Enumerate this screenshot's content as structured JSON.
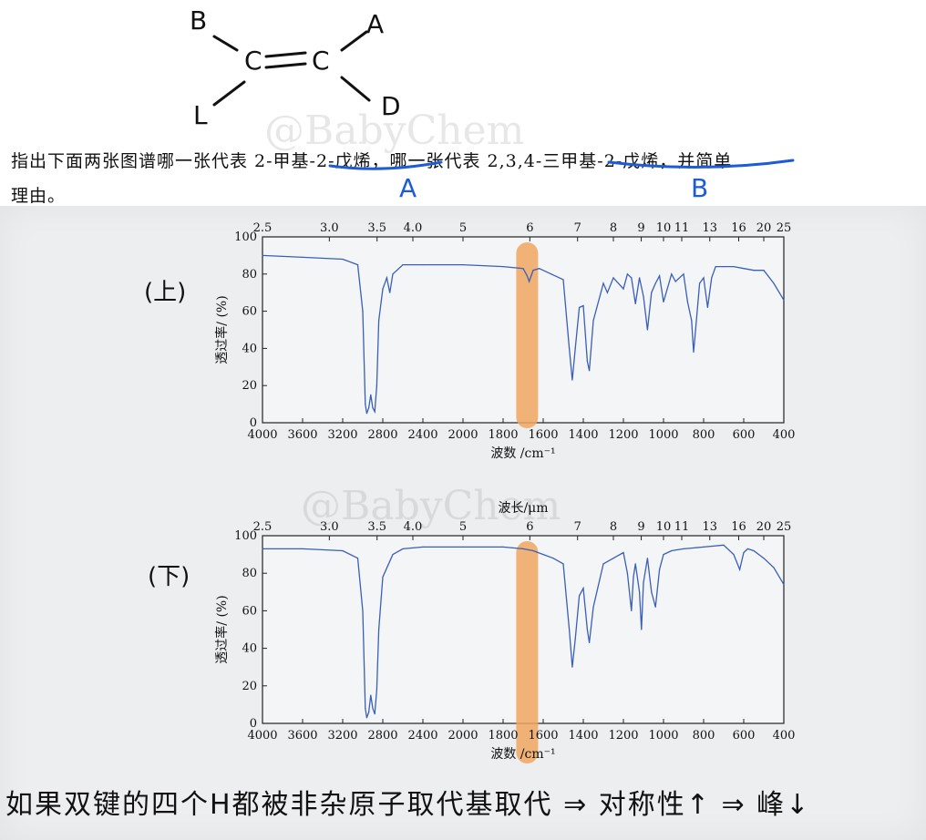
{
  "structure": {
    "atoms": {
      "top_left": "B",
      "top_right": "A",
      "bottom_left": "L",
      "bottom_right": "D",
      "c1": "C",
      "c2": "C"
    }
  },
  "question": {
    "prefix": "指出下面两张图谱哪一张代表 ",
    "compound_a": "2-甲基-2-戊烯",
    "middle": "，哪一张代表 ",
    "compound_b": "2,3,4-三甲基-2-戊烯",
    "suffix": "，并简单",
    "line2": "理由。"
  },
  "annotations": {
    "label_a": "A",
    "label_b": "B",
    "top_chart_label": "(上)",
    "bottom_chart_label": "(下)"
  },
  "watermark": "@BabyChem",
  "note": "如果双键的四个H都被非杂原子取代基取代 ⇒ 对称性↑ ⇒ 峰↓",
  "highlight_color": "#f0a660",
  "line_color": "#3a5fb8",
  "chart_data": [
    {
      "type": "line",
      "name": "top",
      "xlabel": "波数 /cm⁻¹",
      "ylabel": "透过率/ (%)",
      "top_axis_label": "",
      "xlim": [
        4000,
        400
      ],
      "ylim": [
        0,
        100
      ],
      "x_ticks": [
        "4000",
        "3600",
        "3200",
        "2800",
        "2400",
        "2000",
        "1800",
        "1600",
        "1400",
        "1200",
        "1000",
        "800",
        "600",
        "400"
      ],
      "y_ticks": [
        "0",
        "20",
        "40",
        "60",
        "80",
        "100"
      ],
      "top_ticks": [
        "2.5",
        "3.0",
        "3.5",
        "4.0",
        "5",
        "6",
        "7",
        "8",
        "9",
        "10",
        "11",
        "13",
        "16",
        "20",
        "25"
      ],
      "highlight_x": 1680,
      "x": [
        4000,
        3600,
        3200,
        3050,
        3000,
        2975,
        2960,
        2940,
        2920,
        2900,
        2880,
        2860,
        2840,
        2800,
        2760,
        2730,
        2700,
        2600,
        2400,
        2000,
        1800,
        1700,
        1680,
        1670,
        1650,
        1620,
        1560,
        1500,
        1470,
        1455,
        1440,
        1420,
        1400,
        1380,
        1370,
        1350,
        1300,
        1280,
        1250,
        1200,
        1180,
        1160,
        1140,
        1120,
        1100,
        1080,
        1060,
        1040,
        1020,
        1000,
        960,
        940,
        900,
        880,
        860,
        850,
        840,
        820,
        800,
        780,
        760,
        740,
        700,
        650,
        600,
        550,
        500,
        450,
        400
      ],
      "y": [
        90,
        89,
        88,
        85,
        60,
        10,
        5,
        8,
        15,
        8,
        6,
        20,
        55,
        72,
        78,
        70,
        80,
        85,
        85,
        85,
        84,
        83,
        79,
        76,
        82,
        83,
        80,
        77,
        40,
        23,
        40,
        62,
        63,
        33,
        28,
        55,
        75,
        70,
        78,
        72,
        80,
        78,
        64,
        78,
        68,
        50,
        70,
        75,
        79,
        65,
        80,
        76,
        80,
        65,
        55,
        38,
        50,
        75,
        78,
        62,
        78,
        84,
        84,
        84,
        83,
        82,
        82,
        75,
        66
      ]
    },
    {
      "type": "line",
      "name": "bottom",
      "xlabel": "波数 /cm⁻¹",
      "ylabel": "透过率/ (%)",
      "top_axis_label": "波长/μm",
      "xlim": [
        4000,
        400
      ],
      "ylim": [
        0,
        100
      ],
      "x_ticks": [
        "4000",
        "3600",
        "3200",
        "2800",
        "2400",
        "2000",
        "1800",
        "1600",
        "1400",
        "1200",
        "1000",
        "800",
        "600",
        "400"
      ],
      "y_ticks": [
        "0",
        "20",
        "40",
        "60",
        "80",
        "100"
      ],
      "top_ticks": [
        "2.5",
        "3.0",
        "3.5",
        "4.0",
        "5",
        "6",
        "7",
        "8",
        "9",
        "10",
        "11",
        "13",
        "16",
        "20",
        "25"
      ],
      "highlight_x": 1680,
      "x": [
        4000,
        3600,
        3200,
        3050,
        3000,
        2975,
        2960,
        2940,
        2920,
        2900,
        2880,
        2860,
        2840,
        2800,
        2700,
        2600,
        2400,
        2000,
        1800,
        1700,
        1650,
        1600,
        1550,
        1500,
        1470,
        1455,
        1440,
        1420,
        1400,
        1380,
        1370,
        1350,
        1300,
        1250,
        1200,
        1180,
        1160,
        1150,
        1140,
        1120,
        1110,
        1100,
        1080,
        1060,
        1040,
        1020,
        1000,
        960,
        900,
        800,
        700,
        650,
        620,
        600,
        580,
        550,
        500,
        450,
        400
      ],
      "y": [
        93,
        93,
        92,
        88,
        60,
        8,
        3,
        6,
        15,
        8,
        5,
        18,
        50,
        78,
        90,
        93,
        94,
        94,
        94,
        93,
        92,
        90,
        88,
        85,
        50,
        30,
        45,
        68,
        72,
        50,
        43,
        62,
        85,
        88,
        91,
        80,
        60,
        78,
        85,
        70,
        50,
        75,
        88,
        70,
        62,
        82,
        90,
        92,
        93,
        94,
        95,
        90,
        82,
        91,
        93,
        92,
        88,
        83,
        74
      ]
    }
  ]
}
